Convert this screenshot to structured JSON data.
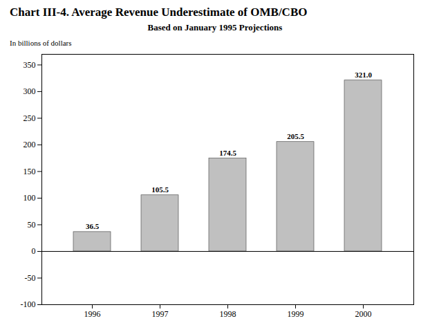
{
  "chart_data": {
    "type": "bar",
    "title": "Chart III-4.  Average Revenue Underestimate of OMB/CBO",
    "subtitle": "Based on January 1995 Projections",
    "ylabel": "In billions of dollars",
    "categories": [
      "1996",
      "1997",
      "1998",
      "1999",
      "2000"
    ],
    "values": [
      36.5,
      105.5,
      174.5,
      205.5,
      321.0
    ],
    "value_labels": [
      "36.5",
      "105.5",
      "174.5",
      "205.5",
      "321.0"
    ],
    "color": "#C0C0C0",
    "ylim": [
      -100,
      370
    ],
    "yticks": [
      -100,
      -50,
      0,
      50,
      100,
      150,
      200,
      250,
      300,
      350
    ],
    "grid": false,
    "data_labels": true
  }
}
